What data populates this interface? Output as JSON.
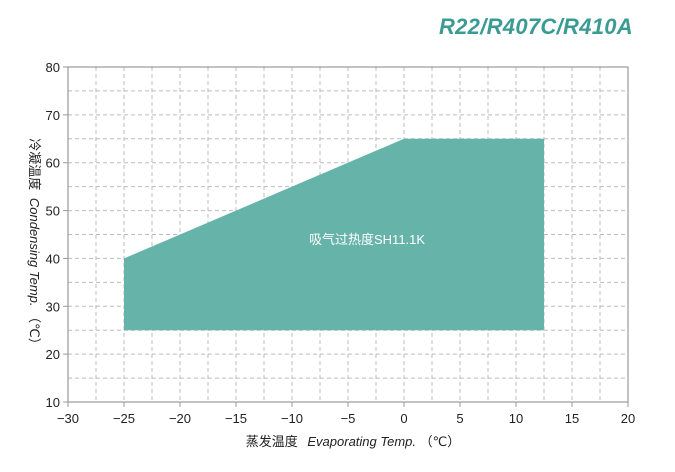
{
  "header": {
    "refrigerants": "R22/R407C/R410A"
  },
  "chart_data": {
    "type": "area",
    "xlabel_cn": "蒸发温度",
    "xlabel_en": "Evaporating Temp.",
    "xlabel_unit": "（℃）",
    "ylabel_cn": "冷凝温度",
    "ylabel_en": "Condensing Temp.",
    "ylabel_unit": "（℃）",
    "xlim": [
      -30,
      20
    ],
    "ylim": [
      10,
      80
    ],
    "xticks": [
      -30,
      -25,
      -20,
      -15,
      -10,
      -5,
      0,
      5,
      10,
      15,
      20
    ],
    "yticks": [
      10,
      20,
      30,
      40,
      50,
      60,
      70,
      80
    ],
    "grid": "dashed",
    "series": [
      {
        "label": "吸气过热度SH11.1K",
        "x": [
          -25,
          0,
          12.5,
          12.5,
          -25
        ],
        "y": [
          40,
          65,
          65,
          25,
          25
        ]
      }
    ],
    "colors": {
      "region_fill": "#66b3aa",
      "title": "#3a9b93",
      "grid": "#bdbdbd",
      "frame": "#9a9a9a"
    }
  }
}
